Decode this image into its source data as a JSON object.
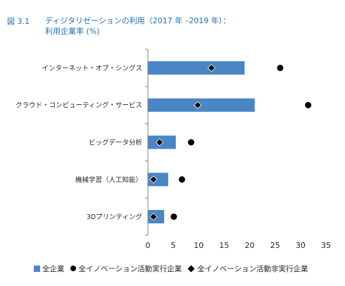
{
  "figure": {
    "number": "図 3.1",
    "title_line1": "ディジタリゼーションの利用（2017 年 –2019 年）：",
    "title_line2": "利用企業率 (%)"
  },
  "colors": {
    "title": "#1a6fb5",
    "bar": "#4a86c5",
    "marker": "#000000",
    "axis": "#808080"
  },
  "chart_data": {
    "type": "bar",
    "orientation": "horizontal",
    "title": "ディジタリゼーションの利用（2017 年 –2019 年）：利用企業率 (%)",
    "categories": [
      "インターネット・オブ・シングス",
      "クラウド・コンピューティング・サービス",
      "ビッグデータ分析",
      "機械学習（人工知能）",
      "3Dプリンティング"
    ],
    "series": [
      {
        "name": "全企業",
        "kind": "bar",
        "values": [
          19.0,
          21.0,
          5.5,
          4.0,
          3.2
        ]
      },
      {
        "name": "全イノベーション活動実行企業",
        "kind": "dot",
        "values": [
          26.0,
          31.5,
          8.5,
          6.7,
          5.1
        ]
      },
      {
        "name": "全イノベーション活動非実行企業",
        "kind": "diamond",
        "values": [
          12.5,
          9.8,
          2.3,
          1.1,
          1.1
        ]
      }
    ],
    "xlim": [
      0,
      35
    ],
    "xticks": [
      "0",
      "5",
      "10",
      "15",
      "20",
      "25",
      "30",
      "35"
    ],
    "xlabel": "",
    "ylabel": "",
    "grid": false,
    "legend_position": "bottom"
  }
}
